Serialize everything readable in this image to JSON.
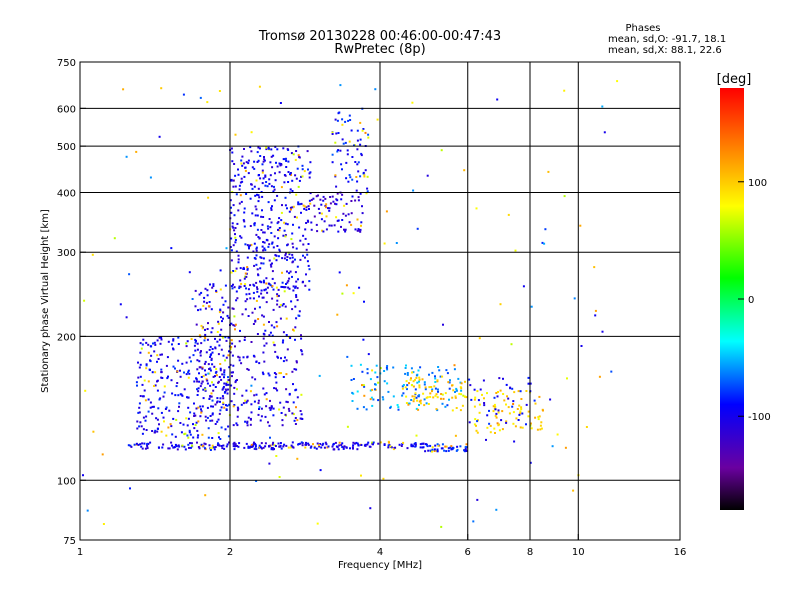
{
  "chart_data": {
    "type": "scatter",
    "title": "Tromsø 20130228 00:46:00-00:47:43",
    "subtitle": "RwPretec (8p)",
    "xlabel": "Frequency [MHz]",
    "ylabel": "Stationary phase Virtual Height [km]",
    "x_scale": "log",
    "y_scale": "log",
    "xlim": [
      1,
      16
    ],
    "ylim": [
      75,
      750
    ],
    "x_ticks": [
      1,
      2,
      4,
      6,
      8,
      10,
      16
    ],
    "y_ticks": [
      75,
      100,
      200,
      300,
      400,
      500,
      600,
      750
    ],
    "x_grid": [
      2,
      4,
      6,
      8,
      10
    ],
    "y_grid": [
      100,
      200,
      300,
      400,
      500,
      600
    ],
    "grid": true,
    "info": {
      "heading": "Phases",
      "line_o": "mean, sd,O: -91.7, 18.1",
      "line_x": "mean, sd,X:  88.1, 22.6"
    },
    "colorbar": {
      "label": "[deg]",
      "range": [
        -180,
        180
      ],
      "ticks": [
        100,
        0,
        -100
      ],
      "colormap": "rainbow",
      "placement": "right"
    },
    "clusters": [
      {
        "name": "ground-trace",
        "f": [
          1.25,
          4.9
        ],
        "h": [
          116,
          120
        ],
        "phase": -100
      },
      {
        "name": "ground-trace-tail",
        "f": [
          4.9,
          6.0
        ],
        "h": [
          115,
          119
        ],
        "phase": -90
      },
      {
        "name": "low-F-cloud",
        "f": [
          1.3,
          2.0
        ],
        "h": [
          122,
          200
        ],
        "phase": -95
      },
      {
        "name": "mid-F-cloud",
        "f": [
          1.7,
          2.8
        ],
        "h": [
          130,
          260
        ],
        "phase": -105
      },
      {
        "name": "upper-F-cloud",
        "f": [
          2.0,
          2.9
        ],
        "h": [
          250,
          500
        ],
        "phase": -100
      },
      {
        "name": "F-nose",
        "f": [
          2.9,
          3.7
        ],
        "h": [
          330,
          400
        ],
        "phase": -110
      },
      {
        "name": "F-upper-arm",
        "f": [
          3.2,
          3.8
        ],
        "h": [
          400,
          600
        ],
        "phase": -90
      },
      {
        "name": "second-hop-band",
        "f": [
          3.5,
          5.9
        ],
        "h": [
          140,
          175
        ],
        "phase": -60
      },
      {
        "name": "yellow-X-trace",
        "f": [
          4.5,
          6.0
        ],
        "h": [
          140,
          165
        ],
        "phase": 100
      },
      {
        "name": "right-X-cloud",
        "f": [
          6.2,
          8.5
        ],
        "h": [
          125,
          155
        ],
        "phase": 95
      },
      {
        "name": "right-O-cloud",
        "f": [
          6.0,
          8.2
        ],
        "h": [
          130,
          165
        ],
        "phase": -95
      },
      {
        "name": "sparse-scatter",
        "f": [
          1.0,
          12.0
        ],
        "h": [
          78,
          700
        ],
        "phase": 0
      }
    ]
  }
}
